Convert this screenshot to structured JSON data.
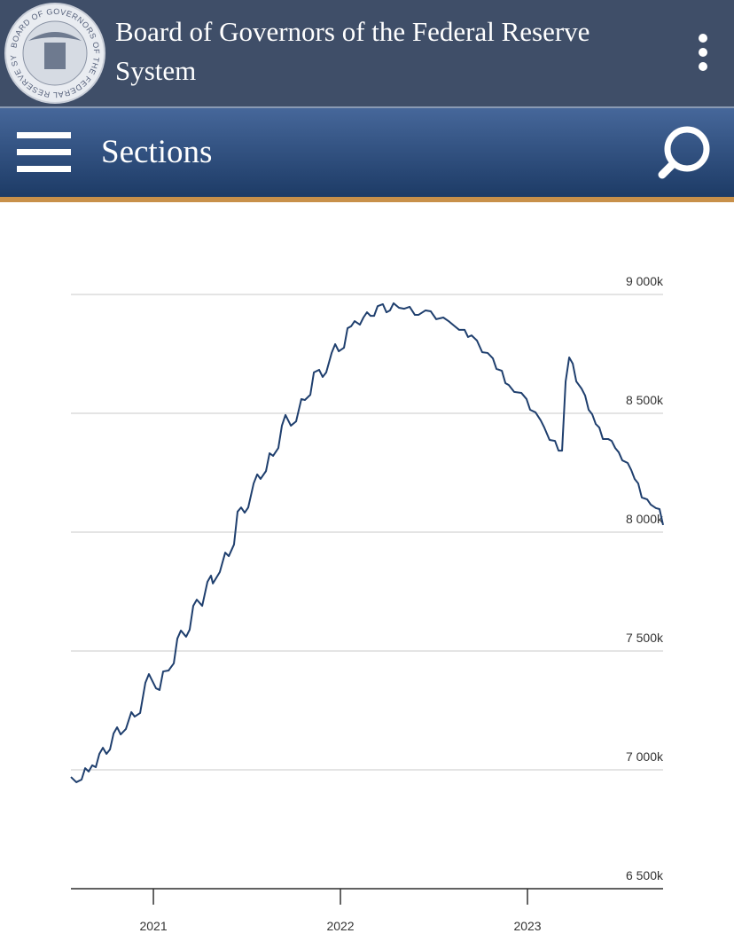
{
  "header": {
    "seal_text": "BOARD OF GOVERNORS OF THE FEDERAL RESERVE SYSTEM",
    "title": "Board of Governors of the Federal Reserve System"
  },
  "nav": {
    "label": "Sections"
  },
  "chart_data": {
    "type": "line",
    "color": "#1f3f6e",
    "grid": true,
    "xlim": [
      2020.559,
      2023.725
    ],
    "xticks": [
      2021,
      2022,
      2023
    ],
    "ylim": [
      6500,
      9000
    ],
    "yticks": [
      {
        "value": 6500,
        "label": "6 500k"
      },
      {
        "value": 7000,
        "label": "7 000k"
      },
      {
        "value": 7500,
        "label": "7 500k"
      },
      {
        "value": 8000,
        "label": "8 000k"
      },
      {
        "value": 8500,
        "label": "8 500k"
      },
      {
        "value": 9000,
        "label": "9 000k"
      }
    ],
    "x": [
      2020.559,
      2020.588,
      2020.616,
      2020.635,
      2020.654,
      2020.673,
      2020.692,
      2020.711,
      2020.73,
      2020.749,
      2020.768,
      2020.787,
      2020.806,
      2020.825,
      2020.853,
      2020.882,
      2020.9,
      2020.929,
      2020.957,
      2020.976,
      2021.014,
      2021.033,
      2021.052,
      2021.081,
      2021.109,
      2021.128,
      2021.147,
      2021.175,
      2021.194,
      2021.213,
      2021.232,
      2021.261,
      2021.289,
      2021.308,
      2021.318,
      2021.355,
      2021.384,
      2021.403,
      2021.431,
      2021.45,
      2021.469,
      2021.488,
      2021.507,
      2021.536,
      2021.555,
      2021.573,
      2021.602,
      2021.621,
      2021.64,
      2021.668,
      2021.687,
      2021.706,
      2021.735,
      2021.763,
      2021.791,
      2021.81,
      2021.839,
      2021.858,
      2021.886,
      2021.905,
      2021.924,
      2021.953,
      2021.972,
      2021.991,
      2022.019,
      2022.038,
      2022.057,
      2022.076,
      2022.104,
      2022.123,
      2022.142,
      2022.161,
      2022.18,
      2022.199,
      2022.227,
      2022.246,
      2022.265,
      2022.284,
      2022.313,
      2022.341,
      2022.37,
      2022.398,
      2022.417,
      2022.455,
      2022.483,
      2022.512,
      2022.55,
      2022.578,
      2022.607,
      2022.635,
      2022.664,
      2022.682,
      2022.701,
      2022.73,
      2022.758,
      2022.787,
      2022.815,
      2022.834,
      2022.863,
      2022.882,
      2022.9,
      2022.929,
      2022.967,
      2022.995,
      2023.014,
      2023.043,
      2023.071,
      2023.09,
      2023.118,
      2023.147,
      2023.166,
      2023.185,
      2023.204,
      2023.223,
      2023.242,
      2023.261,
      2023.289,
      2023.308,
      2023.327,
      2023.346,
      2023.365,
      2023.384,
      2023.403,
      2023.431,
      2023.45,
      2023.469,
      2023.488,
      2023.507,
      2023.536,
      2023.555,
      2023.573,
      2023.592,
      2023.611,
      2023.64,
      2023.659,
      2023.687,
      2023.706,
      2023.725
    ],
    "values": [
      6970,
      6948,
      6959,
      7007,
      6993,
      7019,
      7011,
      7067,
      7093,
      7067,
      7086,
      7153,
      7179,
      7149,
      7172,
      7243,
      7224,
      7239,
      7366,
      7403,
      7343,
      7336,
      7414,
      7418,
      7448,
      7552,
      7586,
      7560,
      7590,
      7690,
      7716,
      7690,
      7791,
      7817,
      7784,
      7832,
      7914,
      7899,
      7948,
      8086,
      8104,
      8082,
      8104,
      8205,
      8243,
      8224,
      8257,
      8332,
      8321,
      8354,
      8448,
      8493,
      8448,
      8466,
      8560,
      8556,
      8578,
      8672,
      8683,
      8653,
      8672,
      8754,
      8791,
      8761,
      8776,
      8858,
      8866,
      8888,
      8873,
      8903,
      8925,
      8910,
      8910,
      8951,
      8959,
      8925,
      8933,
      8963,
      8944,
      8940,
      8948,
      8914,
      8914,
      8933,
      8929,
      8896,
      8903,
      8888,
      8869,
      8851,
      8851,
      8821,
      8828,
      8806,
      8757,
      8754,
      8731,
      8687,
      8679,
      8627,
      8619,
      8590,
      8586,
      8560,
      8515,
      8504,
      8470,
      8440,
      8388,
      8384,
      8343,
      8343,
      8634,
      8735,
      8709,
      8634,
      8604,
      8575,
      8515,
      8496,
      8455,
      8440,
      8392,
      8392,
      8384,
      8354,
      8336,
      8302,
      8291,
      8261,
      8224,
      8205,
      8146,
      8138,
      8116,
      8101,
      8097,
      8030
    ]
  }
}
